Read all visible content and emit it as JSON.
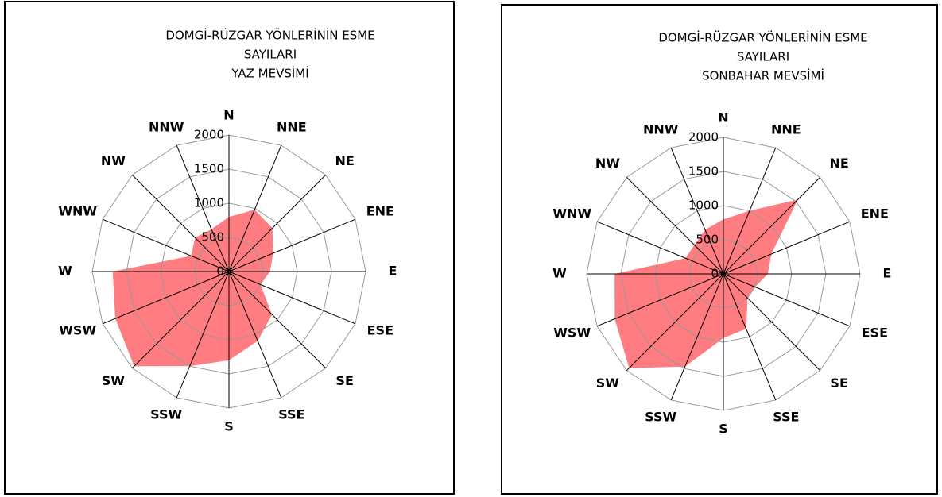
{
  "chart_data": [
    {
      "type": "radar",
      "title": [
        "DOMGİ-RÜZGAR YÖNLERİNİN ESME",
        "SAYILARI",
        "YAZ MEVSİMİ"
      ],
      "categories": [
        "N",
        "NNE",
        "NE",
        "ENE",
        "E",
        "ESE",
        "SE",
        "SSE",
        "S",
        "SSW",
        "SW",
        "WSW",
        "W",
        "WNW",
        "NW",
        "NNW"
      ],
      "values": [
        800,
        980,
        900,
        700,
        600,
        500,
        890,
        1100,
        1300,
        1500,
        1960,
        1800,
        1700,
        600,
        700,
        670
      ],
      "color": "#ff7c80",
      "rlim": [
        0,
        2000
      ],
      "rticks": [
        0,
        500,
        1000,
        1500,
        2000
      ],
      "grid": true
    },
    {
      "type": "radar",
      "title": [
        "DOMGİ-RÜZGAR YÖNLERİNİN ESME",
        "SAYILARI",
        "SONBAHAR MEVSİMİ"
      ],
      "categories": [
        "N",
        "NNE",
        "NE",
        "ENE",
        "E",
        "ESE",
        "SE",
        "SSE",
        "S",
        "SSW",
        "SW",
        "WSW",
        "W",
        "WNW",
        "NW",
        "NNW"
      ],
      "values": [
        800,
        1000,
        1540,
        760,
        650,
        500,
        500,
        870,
        940,
        1470,
        1950,
        1720,
        1590,
        600,
        600,
        700
      ],
      "color": "#ff7c80",
      "rlim": [
        0,
        2000
      ],
      "rticks": [
        0,
        500,
        1000,
        1500,
        2000
      ],
      "grid": true
    }
  ]
}
